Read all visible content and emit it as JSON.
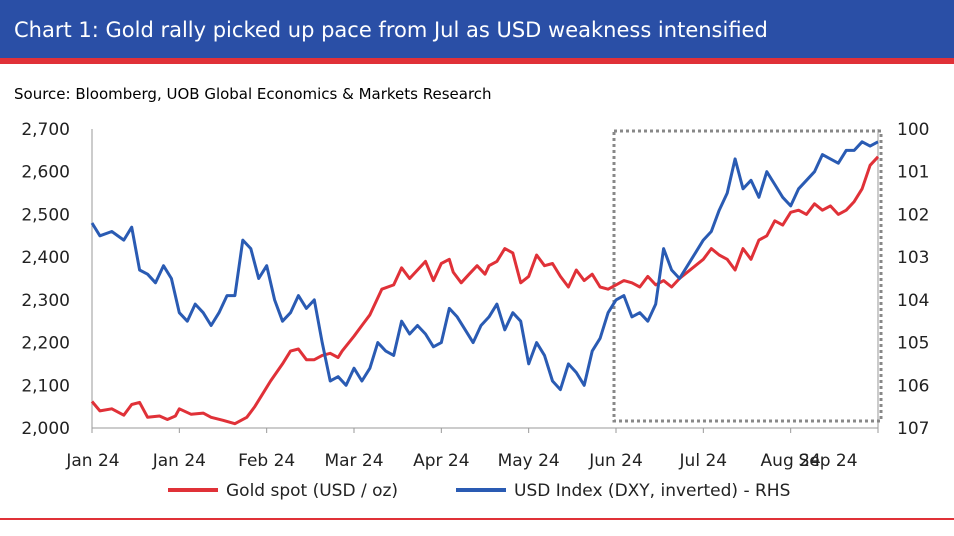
{
  "header": {
    "title": "Chart 1: Gold rally picked up pace from Jul as USD weakness intensified"
  },
  "source": "Source: Bloomberg, UOB Global Economics & Markets Research",
  "colors": {
    "header_bg": "#2a4fa6",
    "accent_red": "#e03138",
    "gold_series": "#e03138",
    "usd_series": "#2a5bb3",
    "highlight_box": "#888888"
  },
  "chart_data": {
    "type": "line",
    "x_tick_labels": [
      "Jan 24",
      "Jan 24",
      "Feb 24",
      "Mar 24",
      "Apr 24",
      "May 24",
      "Jun 24",
      "Jul 24",
      "Aug 24",
      "Sep 24"
    ],
    "left_axis": {
      "ylim": [
        2000,
        2700
      ],
      "ticks": [
        "2,700",
        "2,600",
        "2,500",
        "2,400",
        "2,300",
        "2,200",
        "2,100",
        "2,000"
      ]
    },
    "right_axis": {
      "ylim": [
        100,
        107
      ],
      "inverted": true,
      "ticks": [
        "100",
        "101",
        "102",
        "103",
        "104",
        "105",
        "106",
        "107"
      ]
    },
    "highlight_range": {
      "from": "Jun 24",
      "to": "Sep 24"
    },
    "series": [
      {
        "name": "Gold spot (USD / oz)",
        "axis": "left",
        "x": [
          0,
          2,
          5,
          8,
          10,
          12,
          14,
          17,
          19,
          21,
          22,
          25,
          28,
          30,
          33,
          36,
          39,
          41,
          43,
          45,
          48,
          50,
          52,
          54,
          56,
          58,
          60,
          62,
          63,
          66,
          68,
          70,
          73,
          76,
          78,
          80,
          82,
          84,
          86,
          88,
          90,
          91,
          93,
          95,
          97,
          99,
          100,
          102,
          104,
          106,
          108,
          110,
          112,
          114,
          116,
          118,
          120,
          122,
          124,
          126,
          128,
          130,
          132,
          134,
          136,
          138,
          140,
          142,
          144,
          146,
          148,
          150,
          152,
          154,
          156,
          158,
          160,
          162,
          164,
          166,
          168,
          170,
          172,
          174,
          176,
          178,
          180,
          182,
          184,
          186,
          188,
          190,
          192,
          194,
          196,
          198
        ],
        "values": [
          2062,
          2040,
          2045,
          2030,
          2055,
          2060,
          2025,
          2028,
          2020,
          2028,
          2045,
          2032,
          2035,
          2025,
          2018,
          2010,
          2025,
          2050,
          2080,
          2110,
          2150,
          2180,
          2185,
          2160,
          2160,
          2170,
          2175,
          2165,
          2180,
          2215,
          2240,
          2265,
          2325,
          2335,
          2375,
          2350,
          2370,
          2390,
          2345,
          2385,
          2395,
          2365,
          2340,
          2360,
          2380,
          2360,
          2380,
          2390,
          2420,
          2410,
          2340,
          2355,
          2405,
          2380,
          2385,
          2355,
          2330,
          2370,
          2345,
          2360,
          2330,
          2325,
          2335,
          2345,
          2340,
          2330,
          2355,
          2335,
          2345,
          2330,
          2350,
          2365,
          2380,
          2395,
          2420,
          2405,
          2395,
          2370,
          2420,
          2395,
          2440,
          2450,
          2485,
          2475,
          2505,
          2510,
          2500,
          2525,
          2510,
          2520,
          2500,
          2510,
          2530,
          2560,
          2615,
          2635
        ],
        "color": "#e03138"
      },
      {
        "name": "USD Index (DXY, inverted) - RHS",
        "axis": "right",
        "x": [
          0,
          2,
          5,
          8,
          10,
          12,
          14,
          16,
          18,
          20,
          22,
          24,
          26,
          28,
          30,
          32,
          34,
          36,
          38,
          40,
          42,
          44,
          46,
          48,
          50,
          52,
          54,
          56,
          58,
          60,
          62,
          64,
          66,
          68,
          70,
          72,
          74,
          76,
          78,
          80,
          82,
          84,
          86,
          88,
          90,
          92,
          94,
          96,
          98,
          100,
          102,
          104,
          106,
          108,
          110,
          112,
          114,
          116,
          118,
          120,
          122,
          124,
          126,
          128,
          130,
          132,
          134,
          136,
          138,
          140,
          142,
          144,
          146,
          148,
          150,
          152,
          154,
          156,
          158,
          160,
          162,
          164,
          166,
          168,
          170,
          172,
          174,
          176,
          178,
          180,
          182,
          184,
          186,
          188,
          190,
          192,
          194,
          196,
          198
        ],
        "values": [
          102.2,
          102.5,
          102.4,
          102.6,
          102.3,
          103.3,
          103.4,
          103.6,
          103.2,
          103.5,
          104.3,
          104.5,
          104.1,
          104.3,
          104.6,
          104.3,
          103.9,
          103.9,
          102.6,
          102.8,
          103.5,
          103.2,
          104.0,
          104.5,
          104.3,
          103.9,
          104.2,
          104.0,
          105.0,
          105.9,
          105.8,
          106.0,
          105.6,
          105.9,
          105.6,
          105.0,
          105.2,
          105.3,
          104.5,
          104.8,
          104.6,
          104.8,
          105.1,
          105.0,
          104.2,
          104.4,
          104.7,
          105.0,
          104.6,
          104.4,
          104.1,
          104.7,
          104.3,
          104.5,
          105.5,
          105.0,
          105.3,
          105.9,
          106.1,
          105.5,
          105.7,
          106.0,
          105.2,
          104.9,
          104.3,
          104.0,
          103.9,
          104.4,
          104.3,
          104.5,
          104.1,
          102.8,
          103.3,
          103.5,
          103.2,
          102.9,
          102.6,
          102.4,
          101.9,
          101.5,
          100.7,
          101.4,
          101.2,
          101.6,
          101.0,
          101.3,
          101.6,
          101.8,
          101.4,
          101.2,
          101.0,
          100.6,
          100.7,
          100.8,
          100.5,
          100.5,
          100.3,
          100.4,
          100.3
        ],
        "color": "#2a5bb3"
      }
    ],
    "legend_placement": "bottom-center"
  }
}
